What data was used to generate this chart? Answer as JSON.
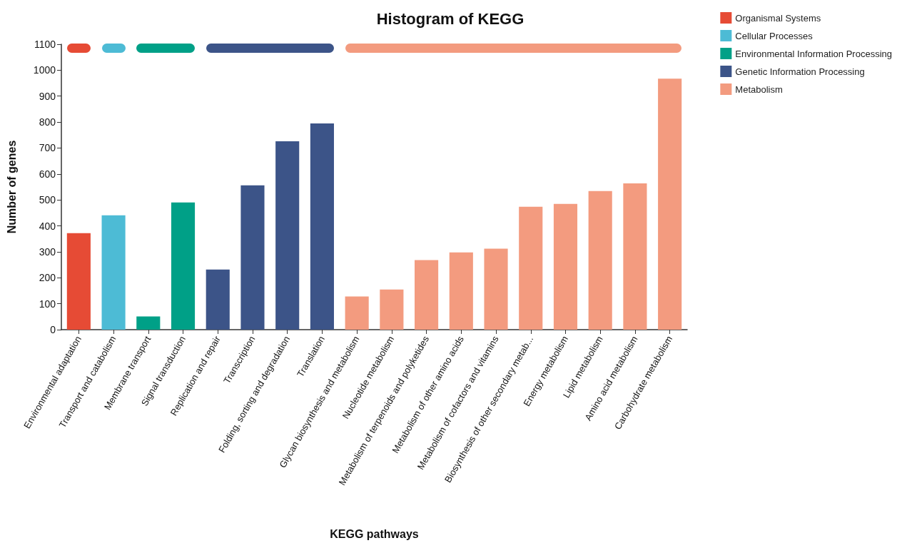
{
  "chart_data": {
    "type": "bar",
    "title": "Histogram of KEGG",
    "xlabel": "KEGG pathways",
    "ylabel": "Number of genes",
    "categories": [
      "Environmental adaptation",
      "Transport and catabolism",
      "Membrane transport",
      "Signal transduction",
      "Replication and repair",
      "Transcription",
      "Folding, sorting and degradation",
      "Translation",
      "Glycan biosynthesis and metabolism",
      "Nucleotide metabolism",
      "Metabolism of terpenoids and polyketides",
      "Metabolism of other amino acids",
      "Metabolism of cofactors and vitamins",
      "Biosynthesis of other secondary metab...",
      "Energy metabolism",
      "Lipid metabolism",
      "Amino acid metabolism",
      "Carbohydrate metabolism"
    ],
    "series": [
      {
        "name": "Organismal Systems",
        "color": "#e64b35",
        "values": [
          372,
          null,
          null,
          null,
          null,
          null,
          null,
          null,
          null,
          null,
          null,
          null,
          null,
          null,
          null,
          null,
          null,
          null
        ]
      },
      {
        "name": "Cellular Processes",
        "color": "#4dbbd5",
        "values": [
          null,
          441,
          null,
          null,
          null,
          null,
          null,
          null,
          null,
          null,
          null,
          null,
          null,
          null,
          null,
          null,
          null,
          null
        ]
      },
      {
        "name": "Environmental Information Processing",
        "color": "#00a087",
        "values": [
          null,
          null,
          51,
          490,
          null,
          null,
          null,
          null,
          null,
          null,
          null,
          null,
          null,
          null,
          null,
          null,
          null,
          null
        ]
      },
      {
        "name": "Genetic Information Processing",
        "color": "#3c5488",
        "values": [
          null,
          null,
          null,
          null,
          232,
          556,
          726,
          795,
          null,
          null,
          null,
          null,
          null,
          null,
          null,
          null,
          null,
          null
        ]
      },
      {
        "name": "Metabolism",
        "color": "#f39b7f",
        "values": [
          null,
          null,
          null,
          null,
          null,
          null,
          null,
          null,
          128,
          155,
          268,
          298,
          312,
          474,
          485,
          534,
          564,
          967
        ]
      }
    ],
    "ylim": [
      0,
      1100
    ],
    "yticks": [
      0,
      100,
      200,
      300,
      400,
      500,
      600,
      700,
      800,
      900,
      1000,
      1100
    ],
    "grid": false,
    "legend": "top right"
  }
}
